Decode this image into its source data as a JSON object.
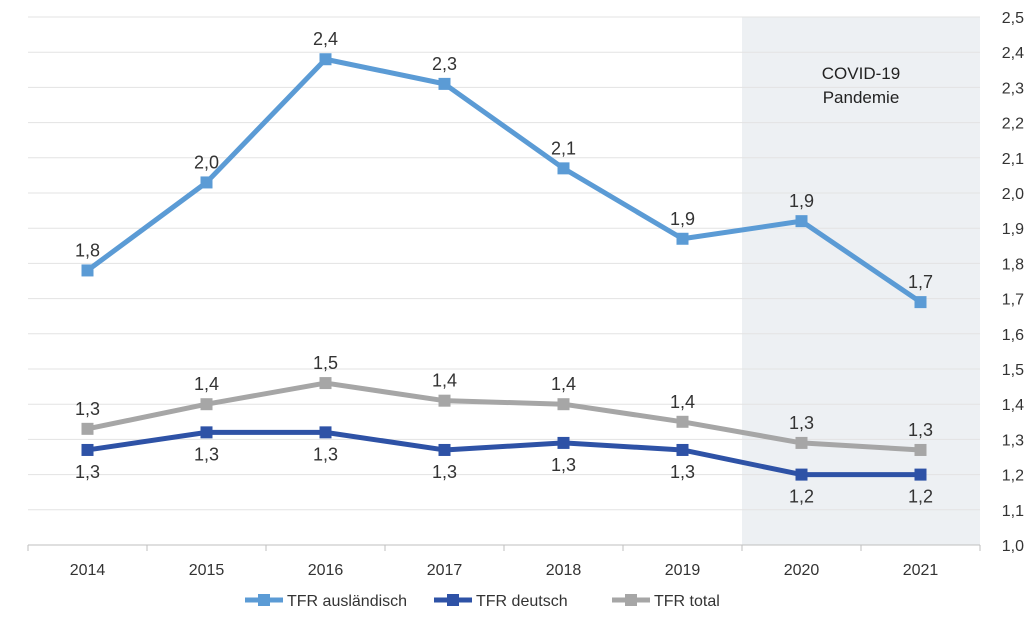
{
  "chart_data": {
    "type": "line",
    "title": "",
    "xlabel": "",
    "ylabel": "",
    "categories": [
      "2014",
      "2015",
      "2016",
      "2017",
      "2018",
      "2019",
      "2020",
      "2021"
    ],
    "ylim": [
      1.0,
      2.5
    ],
    "ytick_labels": [
      "1,0",
      "1,1",
      "1,2",
      "1,3",
      "1,4",
      "1,5",
      "1,6",
      "1,7",
      "1,8",
      "1,9",
      "2,0",
      "2,1",
      "2,2",
      "2,3",
      "2,4",
      "2,5"
    ],
    "grid": true,
    "legend_position": "bottom-center",
    "highlight": {
      "from": "2020",
      "to": "2021",
      "label_line1": "COVID-19",
      "label_line2": "Pandemie",
      "color": "#edf0f3"
    },
    "series": [
      {
        "name": "TFR ausländisch",
        "color": "#5b9bd5",
        "label_position": "above",
        "values": [
          1.78,
          2.03,
          2.38,
          2.31,
          2.07,
          1.87,
          1.92,
          1.69
        ],
        "labels": [
          "1,8",
          "2,0",
          "2,4",
          "2,3",
          "2,1",
          "1,9",
          "1,9",
          "1,7"
        ]
      },
      {
        "name": "TFR deutsch",
        "color": "#2e52a6",
        "label_position": "below",
        "values": [
          1.27,
          1.32,
          1.32,
          1.27,
          1.29,
          1.27,
          1.2,
          1.2
        ],
        "labels": [
          "1,3",
          "1,3",
          "1,3",
          "1,3",
          "1,3",
          "1,3",
          "1,2",
          "1,2"
        ]
      },
      {
        "name": "TFR total",
        "color": "#a6a6a6",
        "label_position": "above",
        "values": [
          1.33,
          1.4,
          1.46,
          1.41,
          1.4,
          1.35,
          1.29,
          1.27
        ],
        "labels": [
          "1,3",
          "1,4",
          "1,5",
          "1,4",
          "1,4",
          "1,4",
          "1,3",
          "1,3"
        ]
      }
    ]
  }
}
